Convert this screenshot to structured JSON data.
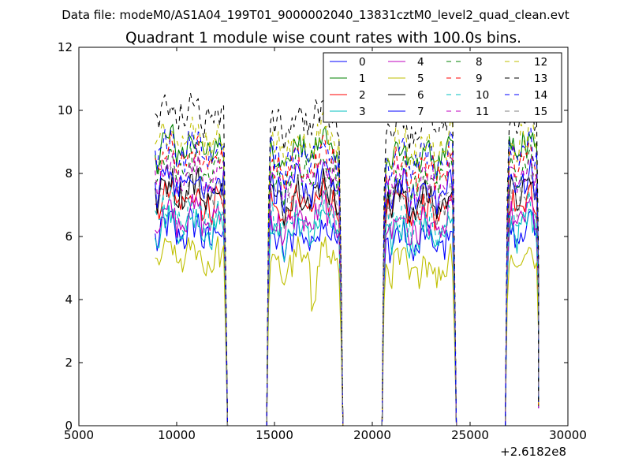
{
  "chart_data": {
    "type": "line",
    "suptitle": "Data file: modeM0/AS1A04_199T01_9000002040_13831cztM0_level2_quad_clean.evt",
    "title": "Quadrant 1 module wise count rates with 100.0s bins.",
    "xlabel": "",
    "ylabel": "",
    "x_offset_label": "+2.6182e8",
    "xlim": [
      5000,
      30000
    ],
    "ylim": [
      0,
      12
    ],
    "xticks": [
      5000,
      10000,
      15000,
      20000,
      25000,
      30000
    ],
    "xtick_labels": [
      "5000",
      "10000",
      "15000",
      "20000",
      "25000",
      "30000"
    ],
    "yticks": [
      0,
      2,
      4,
      6,
      8,
      10,
      12
    ],
    "ytick_labels": [
      "0",
      "2",
      "4",
      "6",
      "8",
      "10",
      "12"
    ],
    "bin_width": 100,
    "good_time_intervals": [
      [
        8900,
        12500
      ],
      [
        14700,
        18400
      ],
      [
        20600,
        24200
      ],
      [
        26900,
        28500
      ]
    ],
    "legend_position": "top-right",
    "legend_columns": 4,
    "series": [
      {
        "name": "0",
        "color": "#0000ff",
        "dash": "solid",
        "mean_rate": 6.0
      },
      {
        "name": "1",
        "color": "#008000",
        "dash": "solid",
        "mean_rate": 8.7
      },
      {
        "name": "2",
        "color": "#ff0000",
        "dash": "solid",
        "mean_rate": 7.0
      },
      {
        "name": "3",
        "color": "#00bfbf",
        "dash": "solid",
        "mean_rate": 6.2
      },
      {
        "name": "4",
        "color": "#bf00bf",
        "dash": "solid",
        "mean_rate": 6.5
      },
      {
        "name": "5",
        "color": "#bfbf00",
        "dash": "solid",
        "mean_rate": 5.2
      },
      {
        "name": "6",
        "color": "#000000",
        "dash": "solid",
        "mean_rate": 7.3
      },
      {
        "name": "7",
        "color": "#0000ff",
        "dash": "solid",
        "mean_rate": 7.6
      },
      {
        "name": "8",
        "color": "#008000",
        "dash": "dashed",
        "mean_rate": 8.0
      },
      {
        "name": "9",
        "color": "#ff0000",
        "dash": "dashed",
        "mean_rate": 8.3
      },
      {
        "name": "10",
        "color": "#00bfbf",
        "dash": "dashed",
        "mean_rate": 6.6
      },
      {
        "name": "11",
        "color": "#bf00bf",
        "dash": "dashed",
        "mean_rate": 7.8
      },
      {
        "name": "12",
        "color": "#bfbf00",
        "dash": "dashed",
        "mean_rate": 9.0
      },
      {
        "name": "13",
        "color": "#000000",
        "dash": "dashed",
        "mean_rate": 9.7
      },
      {
        "name": "14",
        "color": "#0000ff",
        "dash": "dashed",
        "mean_rate": 8.6
      },
      {
        "name": "15",
        "color": "#808080",
        "dash": "dashed",
        "mean_rate": 7.3
      }
    ]
  }
}
